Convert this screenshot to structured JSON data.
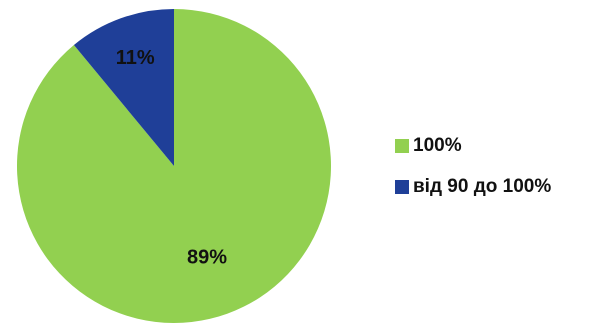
{
  "chart_data": {
    "type": "pie",
    "categories": [
      "100%",
      "від 90 до 100%"
    ],
    "values": [
      89,
      11
    ],
    "value_labels": [
      "89%",
      "11%"
    ],
    "colors": [
      "#92D050",
      "#1F3F98"
    ],
    "start_angle_deg": 0,
    "direction": "clockwise",
    "legend": {
      "placement": "right",
      "entries": [
        "100%",
        "від 90 до 100%"
      ]
    }
  }
}
